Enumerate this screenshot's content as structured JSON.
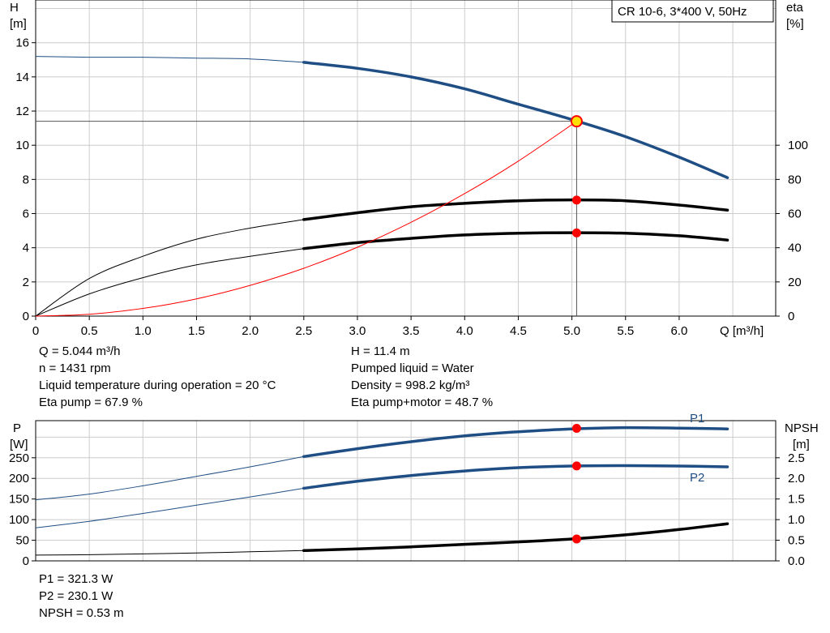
{
  "top_chart_info": {
    "q": "Q = 5.044 m³/h",
    "n": "n = 1431 rpm",
    "temp": "Liquid temperature during operation = 20 °C",
    "eta_pump": "Eta pump = 67.9 %",
    "h": "H = 11.4 m",
    "liquid": "Pumped liquid = Water",
    "density": "Density = 998.2 kg/m³",
    "eta_pm": "Eta pump+motor = 48.7 %"
  },
  "bottom_chart_info": {
    "p1": "P1 = 321.3 W",
    "p2": "P2 = 230.1 W",
    "npsh": "NPSH = 0.53 m"
  },
  "chart_data": [
    {
      "type": "line",
      "title": "CR 10-6, 3*400 V, 50Hz",
      "xlabel": "Q [m³/h]",
      "ylabel_left": [
        "H",
        "[m]"
      ],
      "ylabel_right": [
        "eta",
        "[%]"
      ],
      "xlim": [
        0,
        6.9
      ],
      "ylim_left": [
        0,
        18.5
      ],
      "ylim_right": [
        0,
        185
      ],
      "x_ticks": [
        "0",
        "0.5",
        "1.0",
        "1.5",
        "2.0",
        "2.5",
        "3.0",
        "3.5",
        "4.0",
        "4.5",
        "5.0",
        "5.5",
        "6.0"
      ],
      "y_ticks_left": [
        "0",
        "2",
        "4",
        "6",
        "8",
        "10",
        "12",
        "14",
        "16"
      ],
      "y_ticks_right": [
        "0",
        "20",
        "40",
        "60",
        "80",
        "100"
      ],
      "grid": true,
      "duty_point": {
        "q": 5.044,
        "h": 11.4
      },
      "series": [
        {
          "id": "h-curve",
          "axis": "left",
          "color": "#1f4e84",
          "x": [
            0,
            0.5,
            1.0,
            1.5,
            2.0,
            2.5,
            3.0,
            3.5,
            4.0,
            4.5,
            5.0,
            5.5,
            6.0,
            6.45
          ],
          "y": [
            15.2,
            15.15,
            15.15,
            15.1,
            15.05,
            14.85,
            14.5,
            14.0,
            13.3,
            12.4,
            11.5,
            10.5,
            9.3,
            8.1
          ]
        },
        {
          "id": "eta-pump-curve",
          "axis": "right",
          "color": "#000000",
          "x": [
            0,
            0.5,
            1.0,
            1.5,
            2.0,
            2.5,
            3.0,
            3.5,
            4.0,
            4.5,
            5.0,
            5.5,
            6.0,
            6.45
          ],
          "y": [
            0,
            22,
            35,
            45,
            51.5,
            56.5,
            60.5,
            64,
            66,
            67.5,
            68,
            67.5,
            65,
            62
          ]
        },
        {
          "id": "eta-pump-motor-curve",
          "axis": "right",
          "color": "#000000",
          "x": [
            0,
            0.5,
            1.0,
            1.5,
            2.0,
            2.5,
            3.0,
            3.5,
            4.0,
            4.5,
            5.0,
            5.5,
            6.0,
            6.45
          ],
          "y": [
            0,
            13,
            22.5,
            30,
            35,
            39.5,
            43,
            45.5,
            47.5,
            48.5,
            48.8,
            48.5,
            47,
            44.5
          ]
        },
        {
          "id": "system-curve",
          "axis": "left",
          "color": "#ff0000",
          "x": [
            0,
            0.5,
            1.0,
            1.5,
            2.0,
            2.5,
            3.0,
            3.5,
            4.0,
            4.5,
            5.044
          ],
          "y": [
            0,
            0.11,
            0.45,
            1.01,
            1.8,
            2.8,
            4.03,
            5.49,
            7.17,
            9.07,
            11.4
          ]
        }
      ],
      "markers": [
        {
          "series": "h-curve",
          "x": 5.044,
          "y": 11.4,
          "axis": "left",
          "color": "#ffe000"
        },
        {
          "series": "eta-pump-curve",
          "x": 5.044,
          "y": 67.9,
          "axis": "right",
          "color": "#ff0000"
        },
        {
          "series": "eta-pump-motor-curve",
          "x": 5.044,
          "y": 48.7,
          "axis": "right",
          "color": "#ff0000"
        }
      ]
    },
    {
      "type": "line",
      "xlim": [
        0,
        6.9
      ],
      "ylabel_left": [
        "P",
        "[W]"
      ],
      "ylabel_right": [
        "NPSH",
        "[m]"
      ],
      "ylim_left": [
        0,
        340
      ],
      "ylim_right": [
        0,
        3.4
      ],
      "y_ticks_left": [
        "0",
        "50",
        "100",
        "150",
        "200",
        "250"
      ],
      "y_ticks_right": [
        "0.0",
        "0.5",
        "1.0",
        "1.5",
        "2.0",
        "2.5"
      ],
      "grid": true,
      "series": [
        {
          "id": "p1-curve",
          "name": "P1",
          "axis": "left",
          "color": "#1f4e84",
          "x": [
            0,
            0.5,
            1.0,
            1.5,
            2.0,
            2.5,
            3.0,
            3.5,
            4.0,
            4.5,
            5.0,
            5.5,
            6.0,
            6.45
          ],
          "y": [
            148,
            162,
            182,
            205,
            228,
            253,
            272,
            289,
            303,
            313,
            320,
            323,
            322,
            320
          ]
        },
        {
          "id": "p2-curve",
          "name": "P2",
          "axis": "left",
          "color": "#1f4e84",
          "x": [
            0,
            0.5,
            1.0,
            1.5,
            2.0,
            2.5,
            3.0,
            3.5,
            4.0,
            4.5,
            5.0,
            5.5,
            6.0,
            6.45
          ],
          "y": [
            80,
            96,
            115,
            135,
            155,
            176,
            193,
            207,
            218,
            226,
            230,
            231,
            230,
            228
          ]
        },
        {
          "id": "npsh-curve",
          "axis": "right",
          "color": "#000000",
          "x": [
            0,
            0.5,
            1.0,
            1.5,
            2.0,
            2.5,
            3.0,
            3.5,
            4.0,
            4.5,
            5.0,
            5.5,
            6.0,
            6.45
          ],
          "y": [
            0.14,
            0.15,
            0.17,
            0.19,
            0.22,
            0.25,
            0.29,
            0.34,
            0.4,
            0.46,
            0.53,
            0.63,
            0.76,
            0.9
          ]
        }
      ],
      "markers": [
        {
          "series": "p1-curve",
          "x": 5.044,
          "y": 321.3,
          "axis": "left",
          "color": "#ff0000"
        },
        {
          "series": "p2-curve",
          "x": 5.044,
          "y": 230.1,
          "axis": "left",
          "color": "#ff0000"
        },
        {
          "series": "npsh-curve",
          "x": 5.044,
          "y": 0.53,
          "axis": "right",
          "color": "#ff0000"
        }
      ]
    }
  ]
}
